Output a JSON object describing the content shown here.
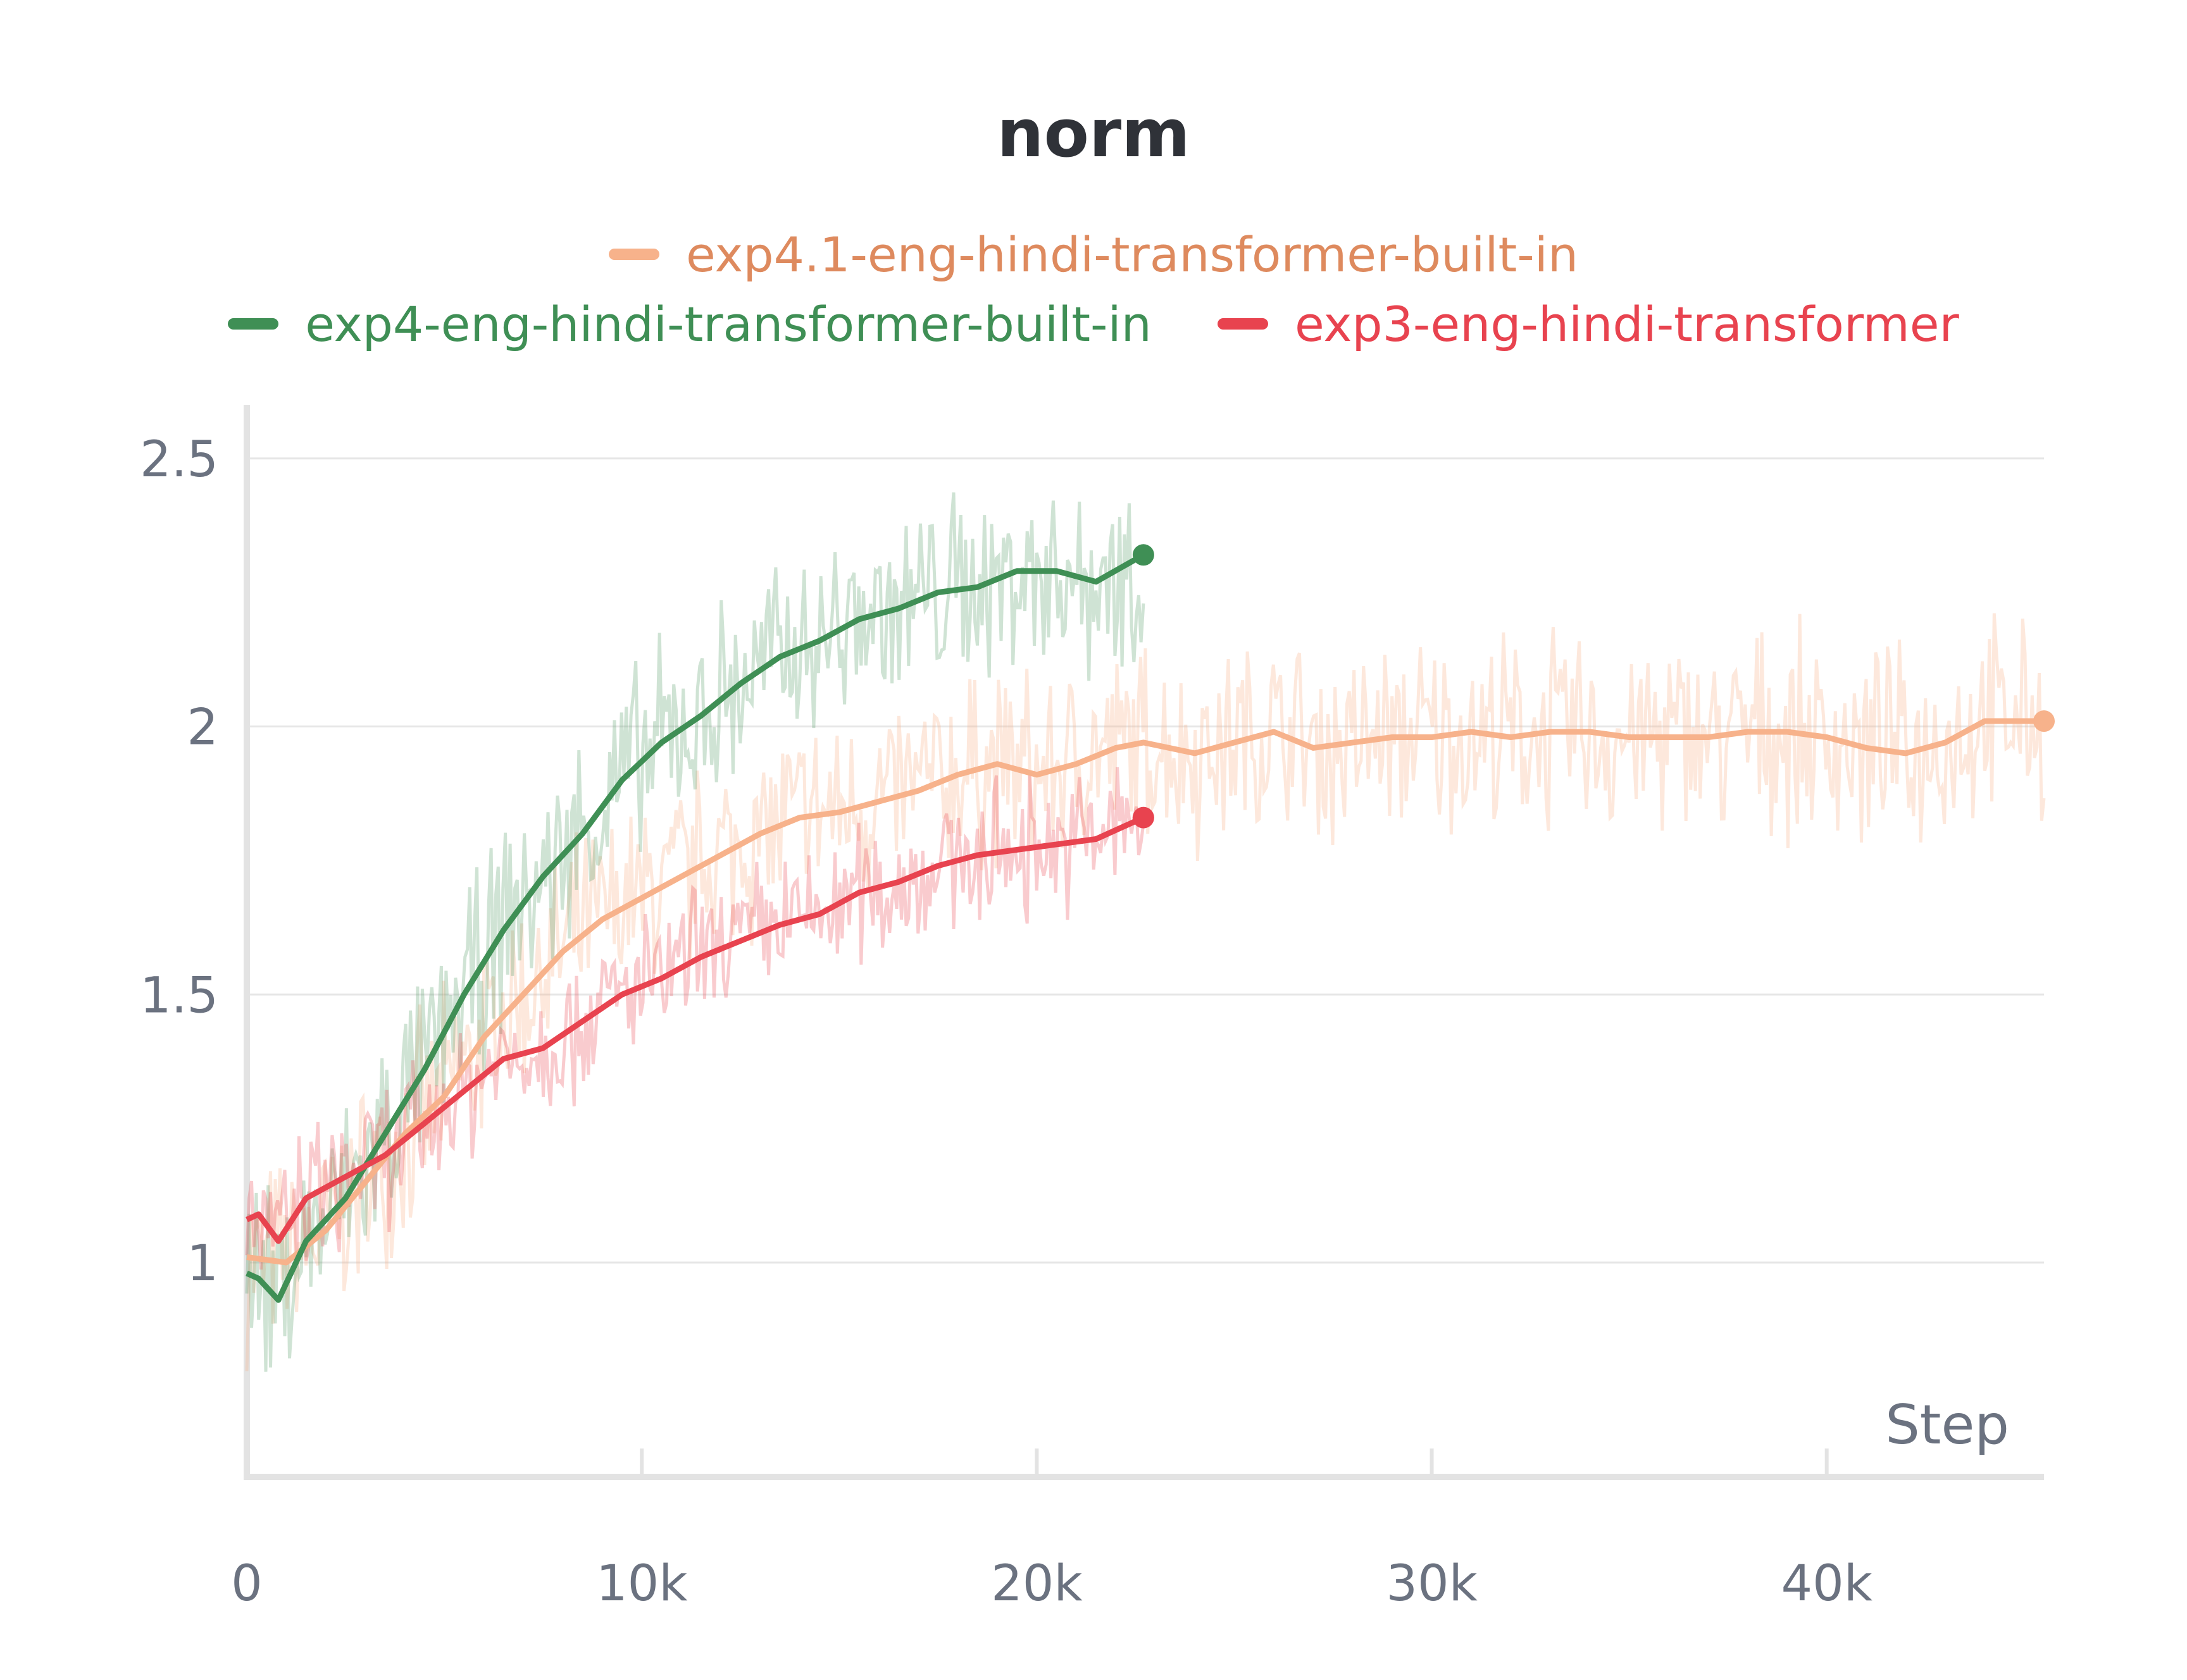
{
  "chart_data": {
    "type": "line",
    "title": "norm",
    "xlabel": "Step",
    "ylabel": "",
    "xlim": [
      0,
      45500
    ],
    "ylim": [
      0.6,
      2.6
    ],
    "x_ticks": [
      0,
      10000,
      20000,
      30000,
      40000
    ],
    "x_tick_labels": [
      "0",
      "10k",
      "20k",
      "30k",
      "40k"
    ],
    "y_ticks": [
      1,
      1.5,
      2,
      2.5
    ],
    "y_tick_labels": [
      "1",
      "1.5",
      "2",
      "2.5"
    ],
    "grid": true,
    "legend_position": "top",
    "series": [
      {
        "name": "exp4.1-eng-hindi-transformer-built-in",
        "color": "#f7b28b",
        "label_color": "#de8a5e",
        "x": [
          0,
          1000,
          2000,
          3000,
          4000,
          5000,
          6000,
          7000,
          8000,
          9000,
          10000,
          11000,
          12000,
          13000,
          14000,
          15000,
          16000,
          17000,
          18000,
          19000,
          20000,
          21000,
          22000,
          22700,
          24000,
          25000,
          26000,
          27000,
          28000,
          29000,
          30000,
          31000,
          32000,
          33000,
          34000,
          35000,
          36000,
          37000,
          38000,
          39000,
          40000,
          41000,
          42000,
          43000,
          44000,
          45500
        ],
        "values": [
          1.01,
          1.0,
          1.06,
          1.15,
          1.24,
          1.31,
          1.42,
          1.5,
          1.58,
          1.64,
          1.68,
          1.72,
          1.76,
          1.8,
          1.83,
          1.84,
          1.86,
          1.88,
          1.91,
          1.93,
          1.91,
          1.93,
          1.96,
          1.97,
          1.95,
          1.97,
          1.99,
          1.96,
          1.97,
          1.98,
          1.98,
          1.99,
          1.98,
          1.99,
          1.99,
          1.98,
          1.98,
          1.98,
          1.99,
          1.99,
          1.98,
          1.96,
          1.95,
          1.97,
          2.01,
          2.01
        ]
      },
      {
        "name": "exp4-eng-hindi-transformer-built-in",
        "color": "#3f8f55",
        "label_color": "#3f8f55",
        "x": [
          0,
          300,
          800,
          1500,
          2500,
          3500,
          4500,
          5500,
          6500,
          7500,
          8500,
          9500,
          10500,
          11500,
          12500,
          13500,
          14500,
          15500,
          16500,
          17500,
          18500,
          19500,
          20500,
          21500,
          22700
        ],
        "values": [
          0.98,
          0.97,
          0.93,
          1.04,
          1.12,
          1.24,
          1.36,
          1.5,
          1.62,
          1.72,
          1.8,
          1.9,
          1.97,
          2.02,
          2.08,
          2.13,
          2.16,
          2.2,
          2.22,
          2.25,
          2.26,
          2.29,
          2.29,
          2.27,
          2.32
        ]
      },
      {
        "name": "exp3-eng-hindi-transformer",
        "color": "#e8434f",
        "label_color": "#e8434f",
        "x": [
          0,
          300,
          800,
          1500,
          2500,
          3500,
          4500,
          5500,
          6500,
          7500,
          8500,
          9500,
          10500,
          11500,
          12500,
          13500,
          14500,
          15500,
          16500,
          17500,
          18500,
          19500,
          20500,
          21500,
          22700
        ],
        "values": [
          1.08,
          1.09,
          1.04,
          1.12,
          1.16,
          1.2,
          1.26,
          1.32,
          1.38,
          1.4,
          1.45,
          1.5,
          1.53,
          1.57,
          1.6,
          1.63,
          1.65,
          1.69,
          1.71,
          1.74,
          1.76,
          1.77,
          1.78,
          1.79,
          1.83
        ]
      }
    ]
  }
}
